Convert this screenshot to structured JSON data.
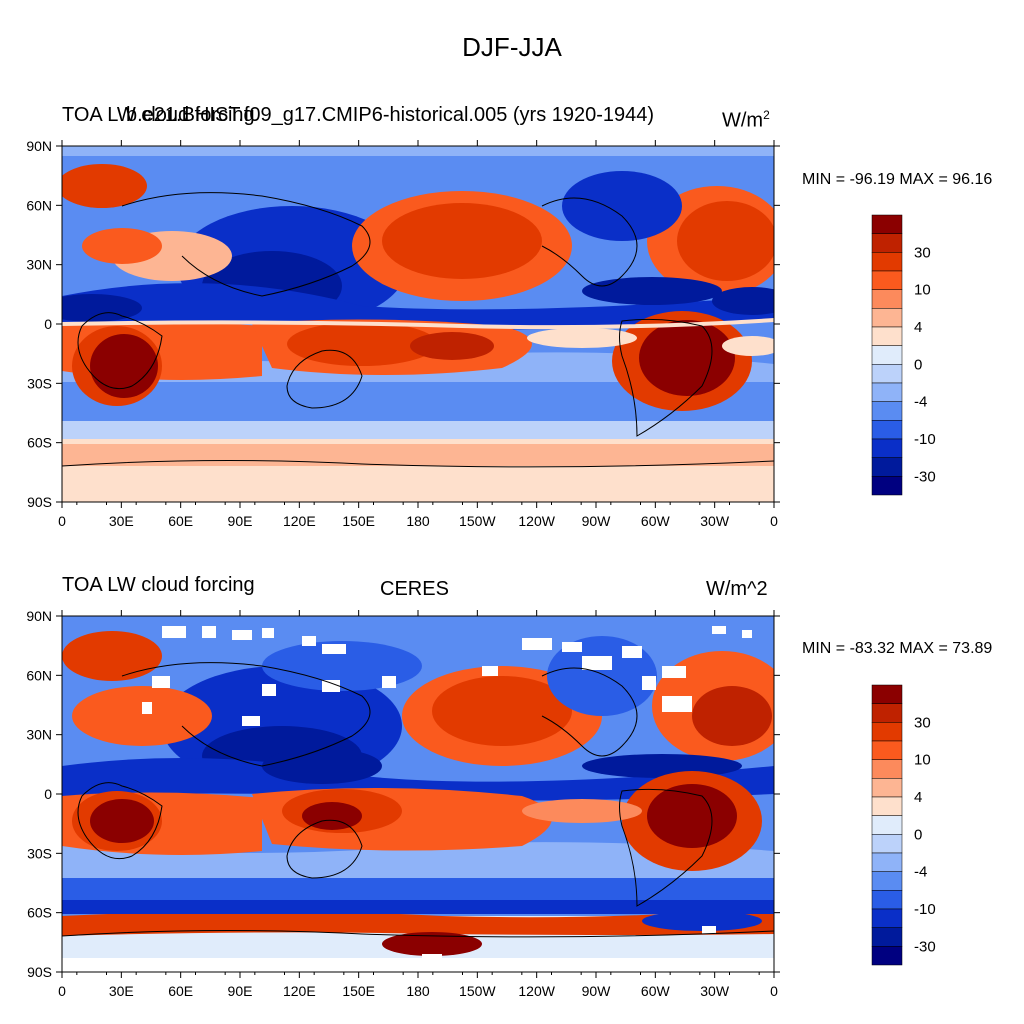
{
  "main_title": "DJF-JJA",
  "panels": [
    {
      "left_title": "TOA LW cloud forcing",
      "center_title": "b.e21.BHIST.f09_g17.CMIP6-historical.005 (yrs 1920-1944)",
      "right_title": "W/m",
      "right_title_sup": "2",
      "min_max": "MIN = -96.19 MAX =  96.16"
    },
    {
      "left_title": "TOA LW cloud forcing",
      "center_title": "CERES",
      "right_title": "W/m^2",
      "right_title_sup": "",
      "min_max": "MIN = -83.32 MAX =  73.89"
    }
  ],
  "lat_ticks": [
    "90N",
    "60N",
    "30N",
    "0",
    "30S",
    "60S",
    "90S"
  ],
  "lon_ticks": [
    "0",
    "30E",
    "60E",
    "90E",
    "120E",
    "150E",
    "180",
    "150W",
    "120W",
    "90W",
    "60W",
    "30W",
    "0"
  ],
  "colorbar": {
    "colors": [
      "#8b0000",
      "#bf2200",
      "#e23a00",
      "#fa5a1e",
      "#fc8a5c",
      "#fdb593",
      "#fee0cc",
      "#e0ecfb",
      "#bcd2fa",
      "#8fb3f8",
      "#5a8cf2",
      "#2a5de6",
      "#0a2fc8",
      "#001a9c",
      "#000080"
    ],
    "labels": [
      "30",
      "10",
      "4",
      "0",
      "-4",
      "-10",
      "-30"
    ]
  }
}
